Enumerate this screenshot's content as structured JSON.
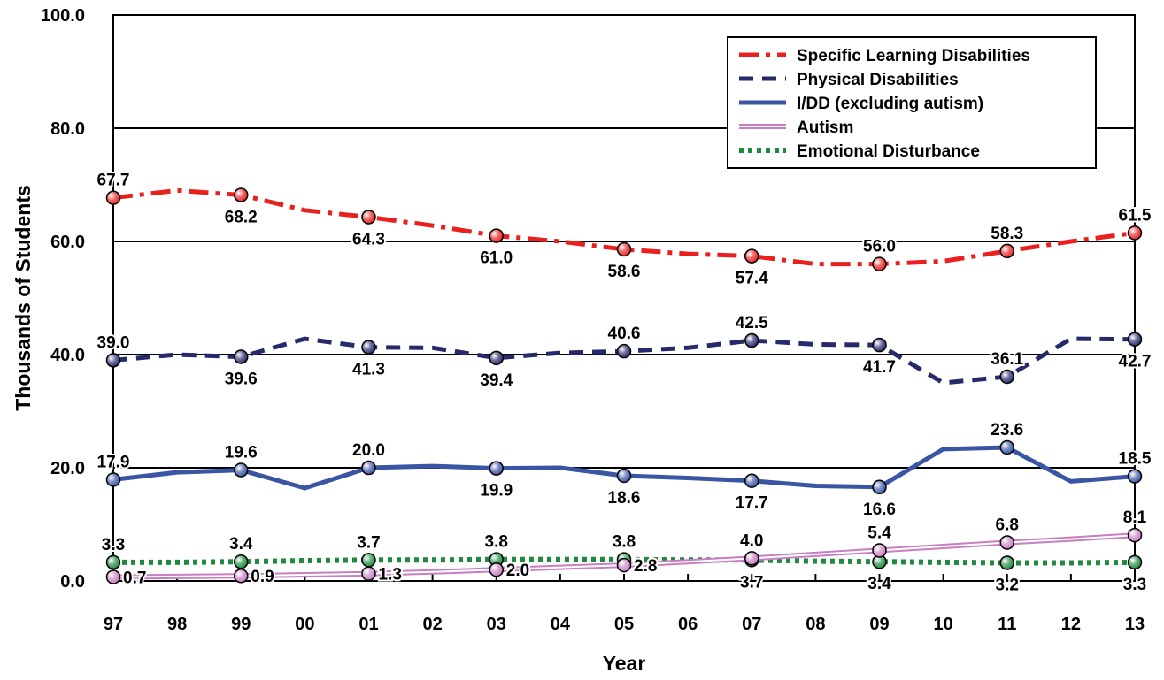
{
  "chart_data": {
    "type": "line",
    "xlabel": "Year",
    "ylabel": "Thousands of Students",
    "ylim": [
      0,
      100
    ],
    "yticks": [
      "0.0",
      "20.0",
      "40.0",
      "60.0",
      "80.0",
      "100.0"
    ],
    "categories": [
      "97",
      "98",
      "99",
      "00",
      "01",
      "02",
      "03",
      "04",
      "05",
      "06",
      "07",
      "08",
      "09",
      "10",
      "11",
      "12",
      "13"
    ],
    "grid": "horizontal",
    "legend_position": "top-right",
    "series": [
      {
        "name": "Specific Learning Disabilities",
        "color": "#e8211f",
        "style": "dash-dot",
        "values": [
          67.7,
          69.0,
          68.2,
          65.5,
          64.3,
          62.8,
          61.0,
          60.0,
          58.6,
          57.8,
          57.4,
          56.0,
          56.0,
          56.5,
          58.3,
          60.0,
          61.5
        ],
        "labeled": [
          {
            "i": 0,
            "text": "67.7",
            "pos": "above"
          },
          {
            "i": 2,
            "text": "68.2",
            "pos": "below"
          },
          {
            "i": 4,
            "text": "64.3",
            "pos": "below"
          },
          {
            "i": 6,
            "text": "61.0",
            "pos": "below"
          },
          {
            "i": 8,
            "text": "58.6",
            "pos": "below"
          },
          {
            "i": 10,
            "text": "57.4",
            "pos": "below"
          },
          {
            "i": 12,
            "text": "56.0",
            "pos": "above"
          },
          {
            "i": 14,
            "text": "58.3",
            "pos": "above"
          },
          {
            "i": 16,
            "text": "61.5",
            "pos": "above"
          }
        ]
      },
      {
        "name": "Physical Disabilities",
        "color": "#262a6b",
        "style": "dashed",
        "values": [
          39.0,
          40.0,
          39.6,
          42.8,
          41.3,
          41.2,
          39.4,
          40.3,
          40.6,
          41.2,
          42.5,
          41.8,
          41.7,
          35.0,
          36.1,
          42.8,
          42.7
        ],
        "labeled": [
          {
            "i": 0,
            "text": "39.0",
            "pos": "above"
          },
          {
            "i": 2,
            "text": "39.6",
            "pos": "below"
          },
          {
            "i": 4,
            "text": "41.3",
            "pos": "below"
          },
          {
            "i": 6,
            "text": "39.4",
            "pos": "below"
          },
          {
            "i": 8,
            "text": "40.6",
            "pos": "above"
          },
          {
            "i": 10,
            "text": "42.5",
            "pos": "above"
          },
          {
            "i": 12,
            "text": "41.7",
            "pos": "below"
          },
          {
            "i": 14,
            "text": "36.1",
            "pos": "above"
          },
          {
            "i": 16,
            "text": "42.7",
            "pos": "below"
          }
        ]
      },
      {
        "name": "I/DD (excluding autism)",
        "color": "#3a55a4",
        "style": "solid",
        "values": [
          17.9,
          19.2,
          19.6,
          16.4,
          20.0,
          20.3,
          19.9,
          20.0,
          18.6,
          18.2,
          17.7,
          16.8,
          16.6,
          23.3,
          23.6,
          17.6,
          18.5
        ],
        "labeled": [
          {
            "i": 0,
            "text": "17.9",
            "pos": "above"
          },
          {
            "i": 2,
            "text": "19.6",
            "pos": "above"
          },
          {
            "i": 4,
            "text": "20.0",
            "pos": "above"
          },
          {
            "i": 6,
            "text": "19.9",
            "pos": "below"
          },
          {
            "i": 8,
            "text": "18.6",
            "pos": "below"
          },
          {
            "i": 10,
            "text": "17.7",
            "pos": "below"
          },
          {
            "i": 12,
            "text": "16.6",
            "pos": "below"
          },
          {
            "i": 14,
            "text": "23.6",
            "pos": "above"
          },
          {
            "i": 16,
            "text": "18.5",
            "pos": "above"
          }
        ]
      },
      {
        "name": "Autism",
        "color": "#c77fc1",
        "style": "double",
        "values": [
          0.7,
          0.8,
          0.9,
          1.1,
          1.3,
          1.6,
          2.0,
          2.4,
          2.8,
          3.4,
          4.0,
          4.7,
          5.4,
          6.1,
          6.8,
          7.4,
          8.1
        ],
        "labeled": [
          {
            "i": 0,
            "text": "0.7",
            "pos": "right"
          },
          {
            "i": 2,
            "text": "0.9",
            "pos": "right"
          },
          {
            "i": 4,
            "text": "1.3",
            "pos": "right"
          },
          {
            "i": 6,
            "text": "2.0",
            "pos": "right"
          },
          {
            "i": 8,
            "text": "2.8",
            "pos": "right"
          },
          {
            "i": 10,
            "text": "4.0",
            "pos": "above"
          },
          {
            "i": 12,
            "text": "5.4",
            "pos": "above"
          },
          {
            "i": 14,
            "text": "6.8",
            "pos": "above"
          },
          {
            "i": 16,
            "text": "8.1",
            "pos": "above"
          }
        ]
      },
      {
        "name": "Emotional Disturbance",
        "color": "#1f8a3e",
        "style": "dotted",
        "values": [
          3.3,
          3.3,
          3.4,
          3.6,
          3.7,
          3.7,
          3.8,
          3.8,
          3.8,
          3.7,
          3.7,
          3.5,
          3.4,
          3.3,
          3.2,
          3.2,
          3.3
        ],
        "labeled": [
          {
            "i": 0,
            "text": "3.3",
            "pos": "above"
          },
          {
            "i": 2,
            "text": "3.4",
            "pos": "above"
          },
          {
            "i": 4,
            "text": "3.7",
            "pos": "above"
          },
          {
            "i": 6,
            "text": "3.8",
            "pos": "above"
          },
          {
            "i": 8,
            "text": "3.8",
            "pos": "above"
          },
          {
            "i": 10,
            "text": "3.7",
            "pos": "below"
          },
          {
            "i": 12,
            "text": "3.4",
            "pos": "below"
          },
          {
            "i": 14,
            "text": "3.2",
            "pos": "below"
          },
          {
            "i": 16,
            "text": "3.3",
            "pos": "below"
          }
        ]
      }
    ]
  }
}
